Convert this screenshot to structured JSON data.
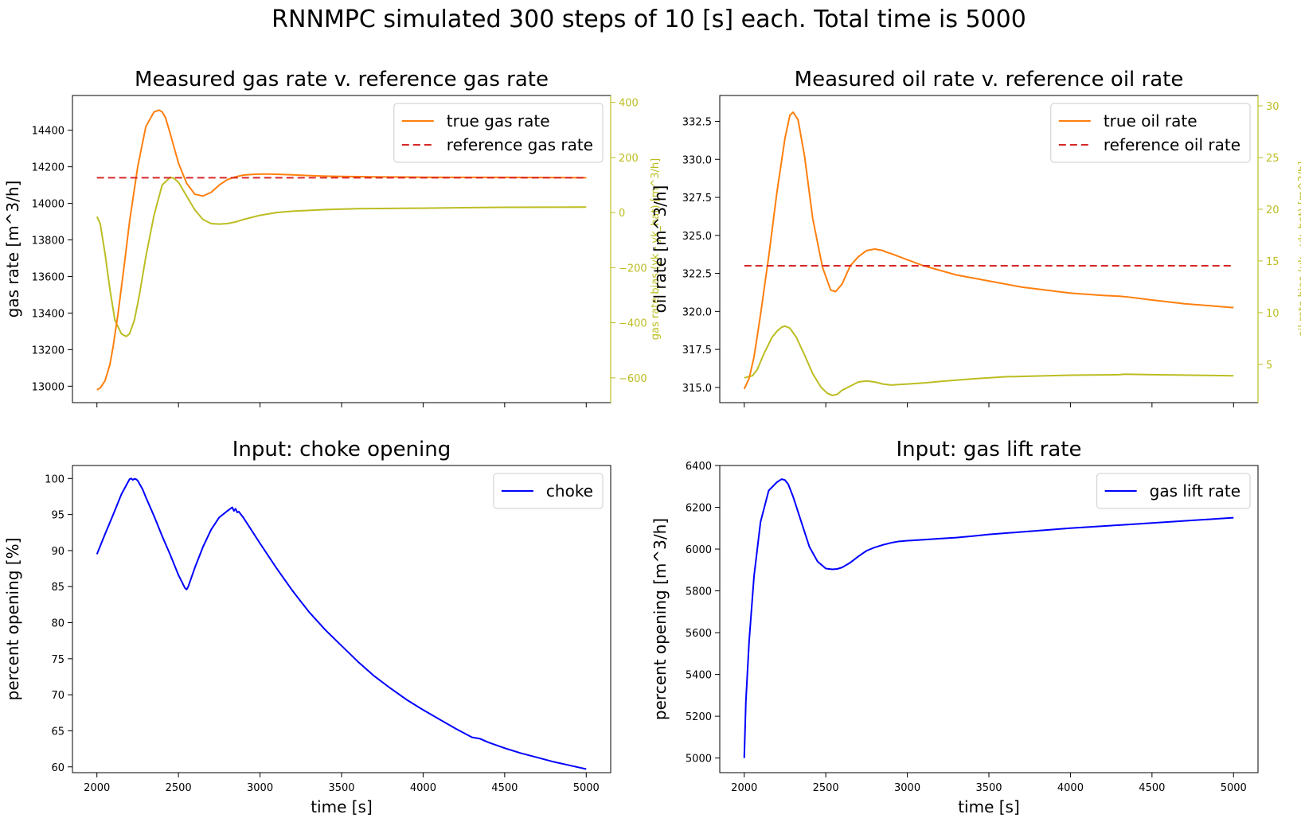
{
  "figure": {
    "suptitle": "RNNMPC simulated 300 steps of 10 [s] each. Total time is 5000"
  },
  "colors": {
    "true_rate": "#ff7f0e",
    "reference": "#d62728",
    "bias": "#bcbd22",
    "input": "#0000ff",
    "axes": "#000000"
  },
  "chart_data": [
    {
      "id": "gas",
      "type": "line",
      "title": "Measured gas rate v. reference gas rate",
      "xlim": [
        1850,
        5150
      ],
      "ylim": [
        12910,
        14590
      ],
      "y_ticks": [
        13000,
        13200,
        13400,
        13600,
        13800,
        14000,
        14200,
        14400
      ],
      "x_ticks": [
        2000,
        2500,
        3000,
        3500,
        4000,
        4500,
        5000
      ],
      "show_x_tick_labels": false,
      "xlabel": "",
      "ylabel": "gas rate [m^3/h]",
      "legend": {
        "placement": "upper-right",
        "entries": [
          "true gas rate",
          "reference gas rate"
        ]
      },
      "series": [
        {
          "name": "true gas rate",
          "color": "#ff7f0e",
          "style": "solid",
          "axis": "left",
          "x": [
            2000,
            2020,
            2050,
            2080,
            2100,
            2130,
            2170,
            2200,
            2250,
            2300,
            2350,
            2380,
            2400,
            2420,
            2450,
            2500,
            2550,
            2600,
            2650,
            2700,
            2750,
            2800,
            2850,
            2900,
            2950,
            3000,
            3050,
            3100,
            3200,
            3300,
            3400,
            3500,
            3700,
            4000,
            4300,
            4500,
            4800,
            5000
          ],
          "y": [
            12980,
            12990,
            13030,
            13120,
            13220,
            13400,
            13680,
            13900,
            14200,
            14420,
            14500,
            14510,
            14500,
            14470,
            14380,
            14220,
            14110,
            14050,
            14040,
            14060,
            14100,
            14130,
            14145,
            14155,
            14158,
            14160,
            14160,
            14159,
            14156,
            14152,
            14149,
            14147,
            14145,
            14143,
            14142,
            14142,
            14141,
            14140
          ]
        },
        {
          "name": "reference gas rate",
          "color": "#d62728",
          "style": "dashed",
          "axis": "left",
          "x": [
            2000,
            5000
          ],
          "y": [
            14140,
            14140
          ]
        }
      ],
      "secondary_axis": {
        "label": "gas rate bias (yk - yk_hat) [m^3/h]",
        "ylim": [
          -690,
          425
        ],
        "ticks": [
          -600,
          -400,
          -200,
          0,
          200,
          400
        ],
        "series": [
          {
            "name": "gas rate bias",
            "color": "#bcbd22",
            "style": "solid",
            "x": [
              2000,
              2020,
              2050,
              2080,
              2110,
              2150,
              2180,
              2200,
              2230,
              2260,
              2300,
              2350,
              2400,
              2450,
              2470,
              2500,
              2550,
              2600,
              2650,
              2700,
              2750,
              2800,
              2850,
              2900,
              3000,
              3100,
              3200,
              3400,
              3600,
              4000,
              4300,
              4500,
              5000
            ],
            "y": [
              -15,
              -40,
              -150,
              -280,
              -390,
              -440,
              -450,
              -440,
              -390,
              -300,
              -160,
              -10,
              100,
              128,
              125,
              110,
              60,
              10,
              -25,
              -40,
              -42,
              -40,
              -34,
              -25,
              -10,
              0,
              5,
              11,
              14,
              16,
              18,
              19,
              20
            ]
          }
        ]
      }
    },
    {
      "id": "oil",
      "type": "line",
      "title": "Measured oil rate v. reference oil rate",
      "xlim": [
        1850,
        5150
      ],
      "ylim": [
        314.0,
        334.2
      ],
      "y_ticks": [
        315.0,
        317.5,
        320.0,
        322.5,
        325.0,
        327.5,
        330.0,
        332.5
      ],
      "y_tick_labels": [
        "315.0",
        "317.5",
        "320.0",
        "322.5",
        "325.0",
        "327.5",
        "330.0",
        "332.5"
      ],
      "x_ticks": [
        2000,
        2500,
        3000,
        3500,
        4000,
        4500,
        5000
      ],
      "show_x_tick_labels": false,
      "xlabel": "",
      "ylabel": "oil rate [m^3/h]",
      "legend": {
        "placement": "upper-right",
        "entries": [
          "true oil rate",
          "reference oil rate"
        ]
      },
      "series": [
        {
          "name": "true oil rate",
          "color": "#ff7f0e",
          "style": "solid",
          "axis": "left",
          "x": [
            2000,
            2030,
            2060,
            2100,
            2150,
            2200,
            2250,
            2280,
            2300,
            2330,
            2370,
            2420,
            2480,
            2530,
            2560,
            2600,
            2650,
            2700,
            2750,
            2800,
            2850,
            2870,
            2900,
            3000,
            3100,
            3200,
            3300,
            3500,
            3700,
            4000,
            4200,
            4300,
            4350,
            4500,
            4700,
            5000
          ],
          "y": [
            314.9,
            315.6,
            317.0,
            319.8,
            323.6,
            327.8,
            331.4,
            332.9,
            333.1,
            332.6,
            330.2,
            326.1,
            322.9,
            321.4,
            321.3,
            321.8,
            323.0,
            323.6,
            324.0,
            324.1,
            324.0,
            323.9,
            323.8,
            323.4,
            323.0,
            322.7,
            322.4,
            322.0,
            321.6,
            321.2,
            321.05,
            321.0,
            320.95,
            320.75,
            320.5,
            320.25
          ]
        },
        {
          "name": "reference oil rate",
          "color": "#d62728",
          "style": "dashed",
          "axis": "left",
          "x": [
            2000,
            5000
          ],
          "y": [
            323.0,
            323.0
          ]
        }
      ],
      "secondary_axis": {
        "label": "oil rate bias (yk - yk_hat) [m^3/h]",
        "ylim": [
          1.3,
          31.0
        ],
        "ticks": [
          5,
          10,
          15,
          20,
          25,
          30
        ],
        "series": [
          {
            "name": "oil rate bias",
            "color": "#bcbd22",
            "style": "solid",
            "x": [
              2000,
              2050,
              2080,
              2120,
              2170,
              2200,
              2230,
              2250,
              2280,
              2320,
              2370,
              2420,
              2470,
              2510,
              2540,
              2570,
              2600,
              2650,
              2700,
              2750,
              2800,
              2850,
              2900,
              3000,
              3100,
              3200,
              3400,
              3600,
              4000,
              4300,
              4330,
              4500,
              5000
            ],
            "y": [
              3.7,
              3.9,
              4.5,
              6.0,
              7.6,
              8.2,
              8.6,
              8.7,
              8.5,
              7.6,
              5.9,
              4.1,
              2.8,
              2.2,
              2.0,
              2.1,
              2.5,
              2.9,
              3.3,
              3.4,
              3.3,
              3.1,
              3.0,
              3.1,
              3.2,
              3.35,
              3.6,
              3.8,
              3.95,
              4.0,
              4.05,
              4.0,
              3.9
            ]
          }
        ]
      }
    },
    {
      "id": "choke",
      "type": "line",
      "title": "Input: choke opening",
      "xlim": [
        1850,
        5150
      ],
      "ylim": [
        59.2,
        101.8
      ],
      "y_ticks": [
        60,
        65,
        70,
        75,
        80,
        85,
        90,
        95,
        100
      ],
      "x_ticks": [
        2000,
        2500,
        3000,
        3500,
        4000,
        4500,
        5000
      ],
      "show_x_tick_labels": true,
      "xlabel": "time [s]",
      "ylabel": "percent opening [%]",
      "legend": {
        "placement": "upper-right",
        "entries": [
          "choke"
        ]
      },
      "series": [
        {
          "name": "choke",
          "color": "#0000ff",
          "style": "solid",
          "axis": "left",
          "x": [
            2000,
            2050,
            2100,
            2150,
            2200,
            2210,
            2220,
            2230,
            2240,
            2250,
            2280,
            2300,
            2350,
            2400,
            2450,
            2500,
            2540,
            2550,
            2560,
            2600,
            2650,
            2700,
            2750,
            2800,
            2830,
            2840,
            2850,
            2860,
            2870,
            2900,
            3000,
            3100,
            3200,
            3300,
            3400,
            3500,
            3600,
            3700,
            3800,
            3900,
            4000,
            4100,
            4200,
            4300,
            4350,
            4400,
            4500,
            4600,
            4700,
            4800,
            4900,
            5000
          ],
          "y": [
            89.5,
            92.3,
            95.0,
            97.8,
            99.9,
            100.0,
            99.8,
            99.95,
            99.9,
            99.7,
            98.5,
            97.4,
            94.8,
            92.0,
            89.4,
            86.6,
            84.8,
            84.6,
            85.0,
            87.6,
            90.5,
            92.9,
            94.6,
            95.5,
            96.0,
            95.5,
            95.8,
            95.3,
            95.4,
            94.5,
            91.0,
            87.6,
            84.4,
            81.5,
            79.0,
            76.8,
            74.6,
            72.6,
            70.9,
            69.3,
            67.9,
            66.6,
            65.3,
            64.1,
            63.9,
            63.4,
            62.6,
            61.9,
            61.3,
            60.7,
            60.2,
            59.7
          ]
        }
      ]
    },
    {
      "id": "gaslift",
      "type": "line",
      "title": "Input: gas lift rate",
      "xlim": [
        1850,
        5150
      ],
      "ylim": [
        4930,
        6400
      ],
      "y_ticks": [
        5000,
        5200,
        5400,
        5600,
        5800,
        6000,
        6200,
        6400
      ],
      "x_ticks": [
        2000,
        2500,
        3000,
        3500,
        4000,
        4500,
        5000
      ],
      "show_x_tick_labels": true,
      "xlabel": "time [s]",
      "ylabel": "percent opening [m^3/h]",
      "legend": {
        "placement": "upper-right",
        "entries": [
          "gas lift rate"
        ]
      },
      "series": [
        {
          "name": "gas lift rate",
          "color": "#0000ff",
          "style": "solid",
          "axis": "left",
          "x": [
            2000,
            2010,
            2030,
            2060,
            2100,
            2150,
            2200,
            2230,
            2250,
            2270,
            2300,
            2350,
            2400,
            2450,
            2500,
            2540,
            2570,
            2600,
            2650,
            2700,
            2750,
            2800,
            2850,
            2900,
            2950,
            3000,
            3100,
            3200,
            3300,
            3400,
            3500,
            3700,
            4000,
            4300,
            4350,
            4500,
            4800,
            5000
          ],
          "y": [
            5000,
            5270,
            5560,
            5870,
            6130,
            6280,
            6320,
            6335,
            6330,
            6310,
            6250,
            6130,
            6010,
            5940,
            5907,
            5903,
            5905,
            5912,
            5935,
            5965,
            5992,
            6008,
            6020,
            6030,
            6037,
            6040,
            6045,
            6050,
            6055,
            6062,
            6070,
            6082,
            6100,
            6115,
            6117,
            6125,
            6140,
            6150
          ]
        }
      ]
    }
  ]
}
